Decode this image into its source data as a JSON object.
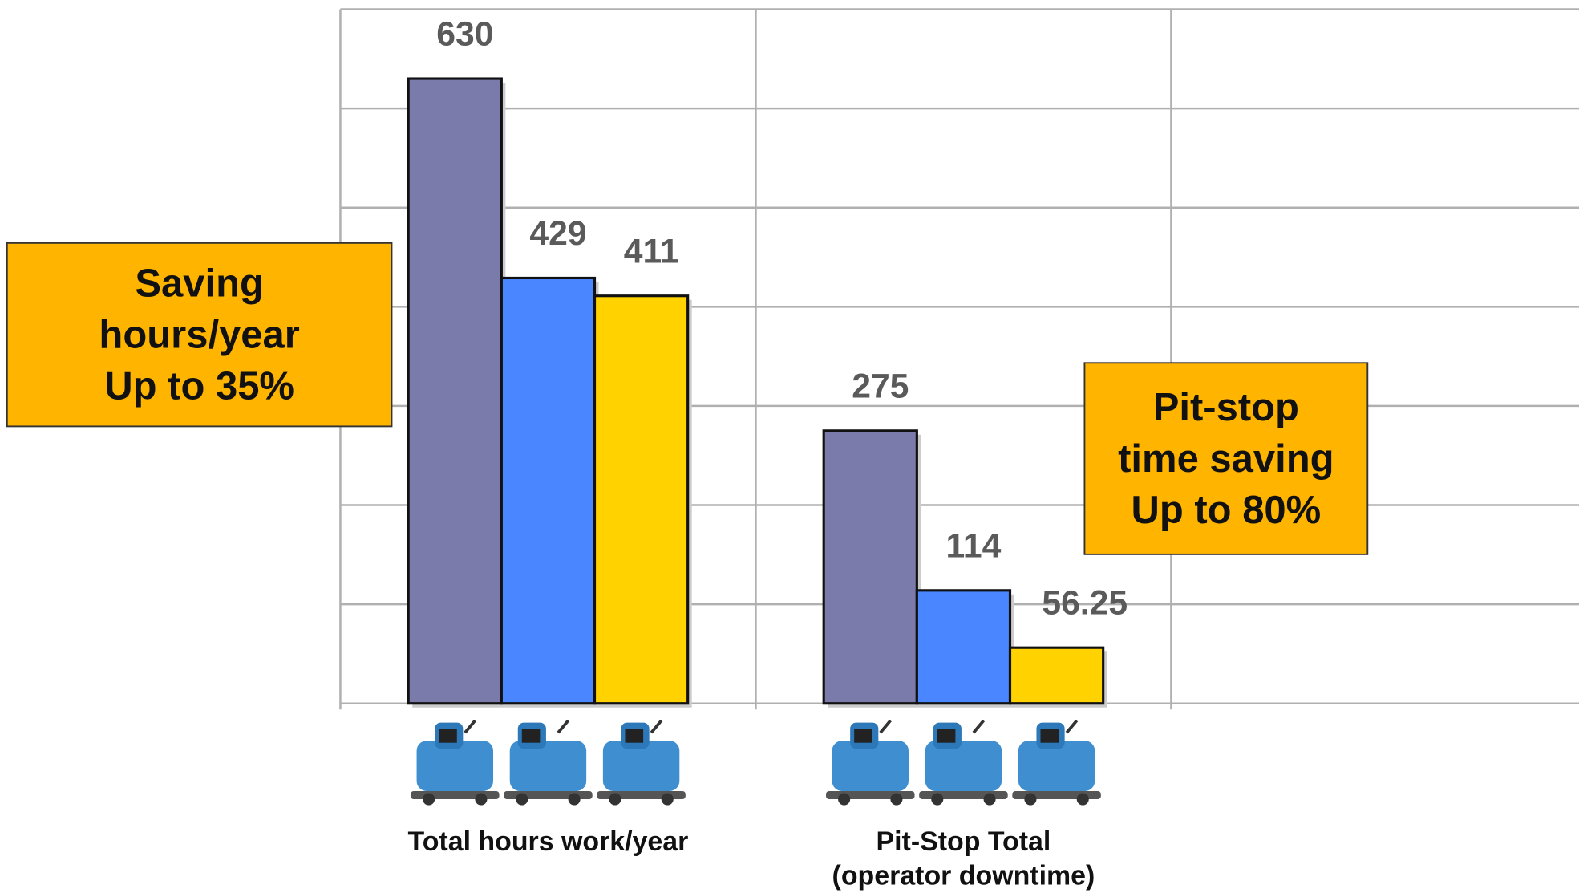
{
  "chart_data": {
    "type": "bar",
    "categories": [
      "Total hours work/year",
      "Pit-Stop Total\n(operator downtime)"
    ],
    "series": [
      {
        "color": "#7b7bab",
        "values": [
          630,
          275
        ]
      },
      {
        "color": "#4a86ff",
        "values": [
          429,
          114
        ]
      },
      {
        "color": "#ffd200",
        "values": [
          411,
          56.25
        ]
      }
    ],
    "ylim": [
      0,
      700
    ],
    "yticks": [
      0,
      100,
      200,
      300,
      400,
      500,
      600,
      700
    ],
    "grid": true,
    "show_tick_labels": false,
    "annotations": [
      {
        "text": "Saving\nhours/year\nUp to 35%",
        "color": "#ffb400"
      },
      {
        "text": "Pit-stop\ntime saving\nUp to 80%",
        "color": "#ffb400"
      }
    ]
  }
}
